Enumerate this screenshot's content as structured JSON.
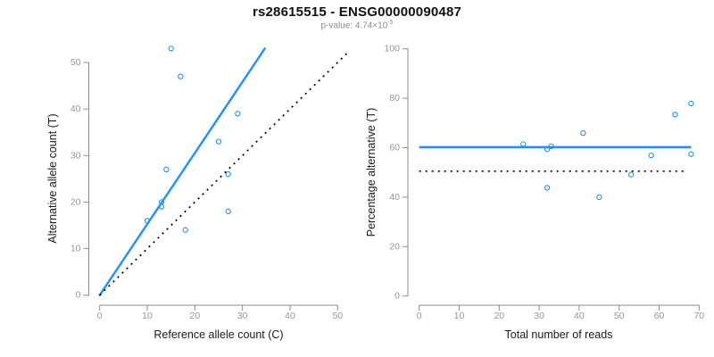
{
  "header": {
    "title": "rs28615515 - ENSG00000090487",
    "subtitle_prefix": "p-value: 4.74×10",
    "subtitle_exponent": "-5"
  },
  "colors": {
    "accent_blue": "#1E90FF",
    "axis_gray": "#8c8c8c",
    "tick_label_gray": "#979797",
    "axis_title_black": "#1a1a1a",
    "dotted_line_black": "#000000",
    "background": "#ffffff"
  },
  "chart_data": [
    {
      "type": "scatter",
      "panel": "left",
      "xlabel": "Reference allele count (C)",
      "ylabel": "Alternative allele count (T)",
      "xlim": [
        0,
        50
      ],
      "ylim": [
        0,
        53
      ],
      "x_ticks": [
        0,
        10,
        20,
        30,
        40,
        50
      ],
      "y_ticks": [
        0,
        10,
        20,
        30,
        40,
        50
      ],
      "grid": false,
      "legend": false,
      "points": [
        [
          15,
          53
        ],
        [
          17,
          47
        ],
        [
          29,
          39
        ],
        [
          25,
          33
        ],
        [
          14,
          27
        ],
        [
          27,
          26
        ],
        [
          13,
          20
        ],
        [
          13,
          19
        ],
        [
          10,
          16
        ],
        [
          27,
          18
        ],
        [
          18,
          14
        ]
      ],
      "regression_line": {
        "x1": 0,
        "y1": 0,
        "x2": 34.7,
        "y2": 53,
        "style": "solid-blue"
      },
      "identity_line": {
        "x1": 0,
        "y1": 0,
        "x2": 52.2,
        "y2": 52.2,
        "style": "dotted-black"
      }
    },
    {
      "type": "scatter",
      "panel": "right",
      "xlabel": "Total number of reads",
      "ylabel": "Percentage alternative (T)",
      "xlim": [
        0,
        70
      ],
      "ylim": [
        0,
        100
      ],
      "x_ticks": [
        0,
        10,
        20,
        30,
        40,
        50,
        60,
        70
      ],
      "y_ticks": [
        0,
        20,
        40,
        60,
        80,
        100
      ],
      "grid": false,
      "legend": false,
      "points": [
        [
          26,
          61.5
        ],
        [
          32,
          59.4
        ],
        [
          33,
          60.6
        ],
        [
          41,
          65.9
        ],
        [
          32,
          43.8
        ],
        [
          45,
          40.0
        ],
        [
          53,
          49.1
        ],
        [
          58,
          56.9
        ],
        [
          64,
          73.4
        ],
        [
          68,
          77.9
        ],
        [
          68,
          57.4
        ]
      ],
      "mean_line": {
        "y": 60.2,
        "x1": 0,
        "x2": 68,
        "style": "solid-blue"
      },
      "null_line": {
        "y": 50.5,
        "x1": 0,
        "x2": 67,
        "style": "dotted-black"
      }
    }
  ]
}
